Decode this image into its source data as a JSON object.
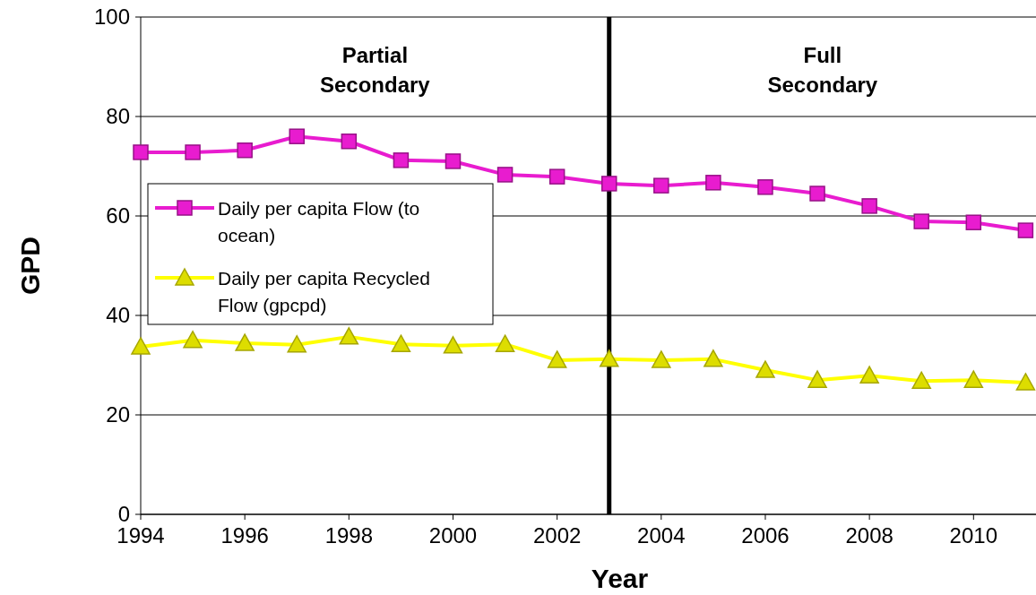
{
  "chart_data": {
    "type": "line",
    "xlabel": "Year",
    "ylabel": "GPD",
    "x": [
      1994,
      1995,
      1996,
      1997,
      1998,
      1999,
      2000,
      2001,
      2002,
      2003,
      2004,
      2005,
      2006,
      2007,
      2008,
      2009,
      2010,
      2011
    ],
    "series": [
      {
        "name": "Daily per capita Flow (to ocean)",
        "color": "#e81ccf",
        "marker": "square",
        "values": [
          72.8,
          72.8,
          73.2,
          76.0,
          75.0,
          71.2,
          71.0,
          68.3,
          67.9,
          66.5,
          66.1,
          66.7,
          65.8,
          64.5,
          62.0,
          58.9,
          58.7,
          57.1
        ]
      },
      {
        "name": "Daily per capita Recycled Flow (gpcpd)",
        "color": "#ffff00",
        "marker": "triangle",
        "values": [
          33.7,
          35.0,
          34.4,
          34.1,
          35.7,
          34.2,
          33.9,
          34.2,
          31.0,
          31.2,
          31.0,
          31.2,
          29.0,
          27.0,
          27.9,
          26.8,
          27.0,
          26.5
        ]
      }
    ],
    "xlim": [
      1994,
      2011.2
    ],
    "xticks": [
      1994,
      1996,
      1998,
      2000,
      2002,
      2004,
      2006,
      2008,
      2010
    ],
    "ylim": [
      0,
      100
    ],
    "yticks": [
      0,
      20,
      40,
      60,
      80,
      100
    ],
    "grid": "y",
    "legend": "left",
    "ref_lines": [
      {
        "axis": "x",
        "value": 2003,
        "color": "#000000"
      }
    ],
    "annotations": [
      "Partial\nSecondary",
      "Full\nSecondary"
    ]
  }
}
